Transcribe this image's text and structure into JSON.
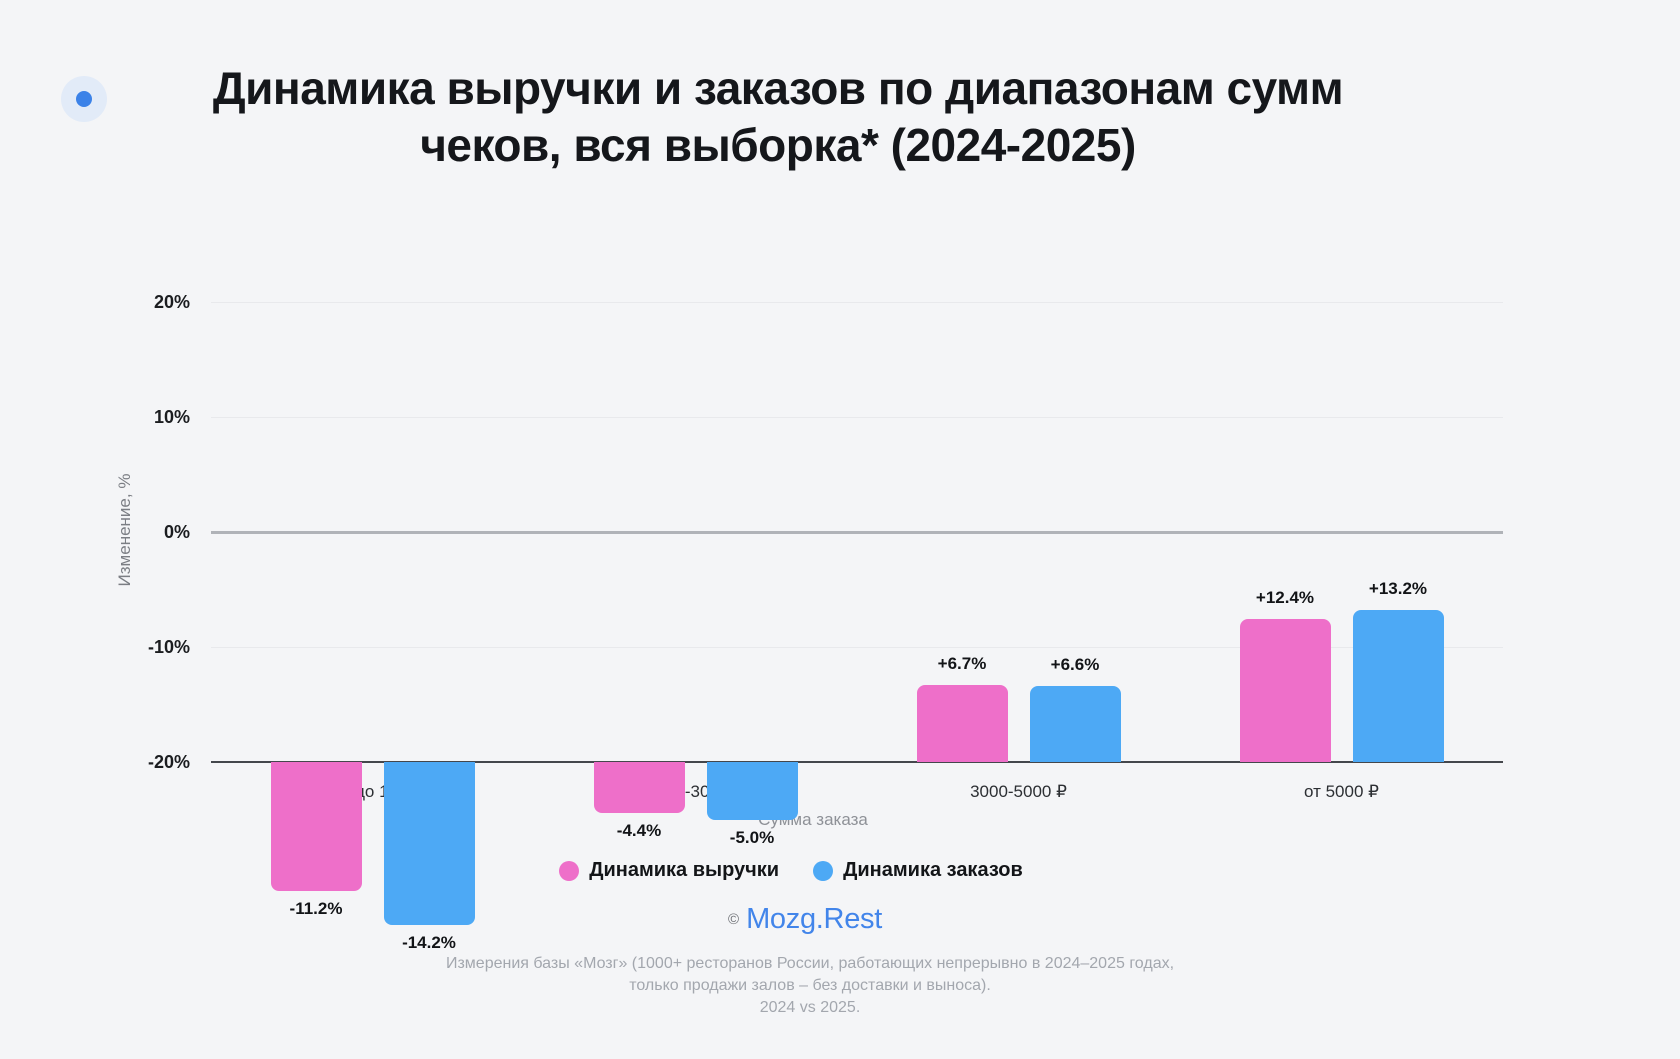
{
  "page": {
    "background": "#f4f5f7"
  },
  "header": {
    "bullet_color": "#3b82e8",
    "bullet_halo_color": "#e2ebf8",
    "title_line1": "Динамика выручки и заказов по диапазонам сумм",
    "title_line2": "чеков, вся выборка* (2024-2025)"
  },
  "chart_data": {
    "type": "bar",
    "title": "Динамика выручки и заказов по диапазонам сумм чеков, вся выборка* (2024-2025)",
    "xlabel": "Сумма заказа",
    "ylabel": "Изменение, %",
    "ylim": [
      -20,
      20
    ],
    "yticks": [
      20,
      10,
      0,
      -10,
      -20
    ],
    "ytick_labels": [
      "20%",
      "10%",
      "0%",
      "-10%",
      "-20%"
    ],
    "grid": true,
    "legend_position": "bottom",
    "categories": [
      "Чеки до 1500 ₽",
      "1500-3000 ₽",
      "3000-5000 ₽",
      "от 5000 ₽"
    ],
    "series": [
      {
        "name": "Динамика выручки",
        "color": "#ee6fc9",
        "values": [
          -11.2,
          -4.4,
          6.7,
          12.4
        ],
        "labels": [
          "-11.2%",
          "-4.4%",
          "+6.7%",
          "+12.4%"
        ]
      },
      {
        "name": "Динамика заказов",
        "color": "#4da9f5",
        "values": [
          -14.2,
          -5.0,
          6.6,
          13.2
        ],
        "labels": [
          "-14.2%",
          "-5.0%",
          "+6.6%",
          "+13.2%"
        ]
      }
    ]
  },
  "footer": {
    "copyright_symbol": "©",
    "brand": "Mozg.Rest",
    "brand_color": "#4285ea",
    "caption_lines": [
      "Измерения базы «Мозг» (1000+ ресторанов России, работающих непрерывно в 2024–2025 годах,",
      "только продажи залов – без доставки и выноса).",
      "2024 vs 2025."
    ]
  }
}
